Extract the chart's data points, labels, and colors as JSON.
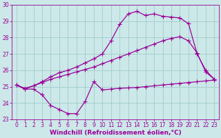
{
  "background_color": "#cce8e8",
  "grid_color": "#a0cccc",
  "line_color": "#990099",
  "marker": "+",
  "markersize": 4,
  "linewidth": 0.9,
  "xlim": [
    -0.5,
    23.5
  ],
  "ylim": [
    23,
    30
  ],
  "yticks": [
    23,
    24,
    25,
    26,
    27,
    28,
    29,
    30
  ],
  "xticks": [
    0,
    1,
    2,
    3,
    4,
    5,
    6,
    7,
    8,
    9,
    10,
    11,
    12,
    13,
    14,
    15,
    16,
    17,
    18,
    19,
    20,
    21,
    22,
    23
  ],
  "xlabel": "Windchill (Refroidissement éolien,°C)",
  "xlabel_fontsize": 6.5,
  "tick_fontsize": 5.5,
  "line1_x": [
    0,
    1,
    2,
    3,
    4,
    5,
    6,
    7,
    8,
    9,
    10,
    11,
    12,
    13,
    14,
    15,
    16,
    17,
    18,
    19,
    20,
    21,
    22,
    23
  ],
  "line1_y": [
    25.1,
    24.85,
    24.85,
    24.5,
    23.85,
    23.6,
    23.35,
    23.35,
    24.1,
    25.3,
    24.8,
    24.85,
    24.9,
    24.92,
    24.95,
    25.0,
    25.05,
    25.1,
    25.15,
    25.2,
    25.25,
    25.3,
    25.35,
    25.4
  ],
  "line2_x": [
    0,
    1,
    2,
    3,
    4,
    5,
    6,
    7,
    8,
    9,
    10,
    11,
    12,
    13,
    14,
    15,
    16,
    17,
    18,
    19,
    20,
    21,
    22,
    23
  ],
  "line2_y": [
    25.1,
    24.9,
    25.05,
    25.25,
    25.45,
    25.6,
    25.75,
    25.9,
    26.05,
    26.2,
    26.4,
    26.6,
    26.8,
    27.0,
    27.2,
    27.4,
    27.6,
    27.8,
    27.95,
    28.05,
    27.8,
    27.05,
    25.9,
    25.45
  ],
  "line3_x": [
    0,
    1,
    2,
    3,
    4,
    5,
    6,
    7,
    8,
    9,
    10,
    11,
    12,
    13,
    14,
    15,
    16,
    17,
    18,
    19,
    20,
    21,
    22,
    23
  ],
  "line3_y": [
    25.1,
    24.85,
    25.05,
    25.3,
    25.6,
    25.85,
    26.0,
    26.2,
    26.45,
    26.7,
    27.0,
    27.8,
    28.8,
    29.45,
    29.6,
    29.35,
    29.45,
    29.3,
    29.25,
    29.2,
    28.85,
    27.0,
    26.0,
    25.45
  ]
}
